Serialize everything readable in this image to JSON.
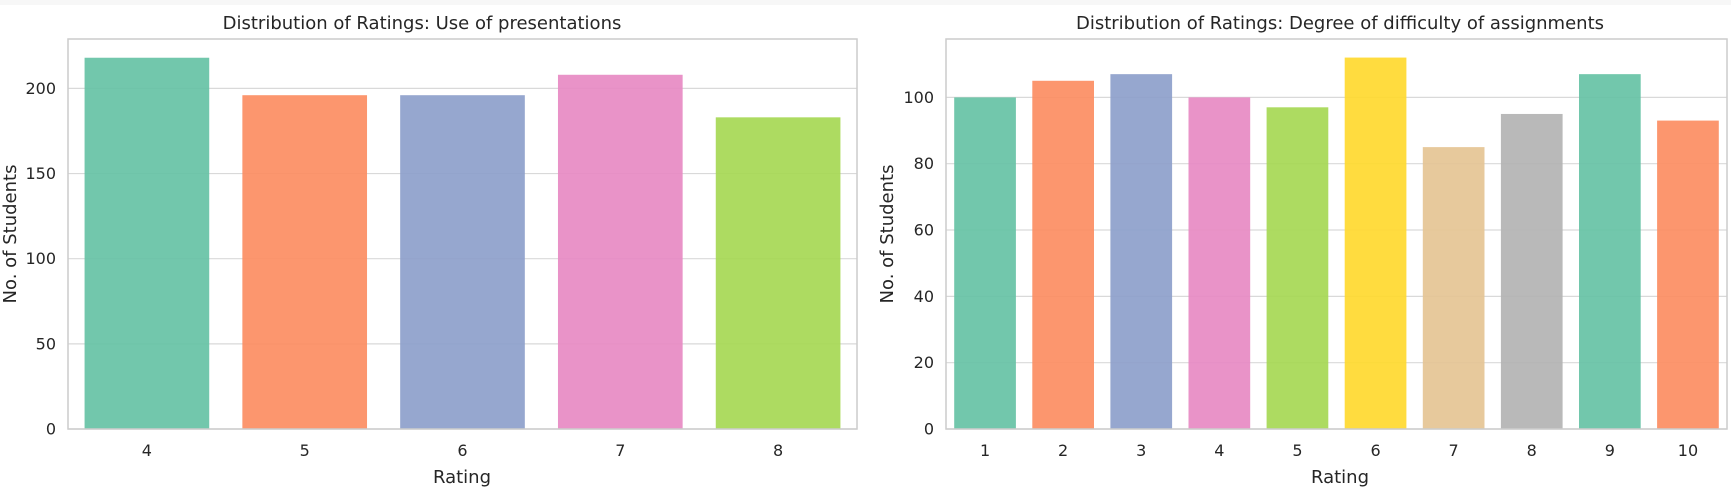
{
  "chart_data": [
    {
      "type": "bar",
      "title": "Distribution of Ratings: Use of presentations",
      "xlabel": "Rating",
      "ylabel": "No. of Students",
      "categories": [
        "4",
        "5",
        "6",
        "7",
        "8"
      ],
      "values": [
        218,
        196,
        196,
        208,
        183
      ],
      "ylim": [
        0,
        229
      ],
      "yticks": [
        0,
        50,
        100,
        150,
        200
      ],
      "grid": true,
      "palette": [
        "#66c2a5",
        "#fc8d62",
        "#8da0cb",
        "#e78ac3",
        "#a6d854"
      ],
      "bar_opacity": 0.92
    },
    {
      "type": "bar",
      "title": "Distribution of Ratings: Degree of difficulty of assignments",
      "xlabel": "Rating",
      "ylabel": "No. of Students",
      "categories": [
        "1",
        "2",
        "3",
        "4",
        "5",
        "6",
        "7",
        "8",
        "9",
        "10"
      ],
      "values": [
        100,
        105,
        107,
        100,
        97,
        112,
        85,
        95,
        107,
        93
      ],
      "ylim": [
        0,
        117.6
      ],
      "yticks": [
        0,
        20,
        40,
        60,
        80,
        100
      ],
      "grid": true,
      "palette": [
        "#66c2a5",
        "#fc8d62",
        "#8da0cb",
        "#e78ac3",
        "#a6d854",
        "#ffd92f",
        "#e5c494",
        "#b3b3b3",
        "#66c2a5",
        "#fc8d62"
      ],
      "bar_opacity": 0.92
    }
  ]
}
